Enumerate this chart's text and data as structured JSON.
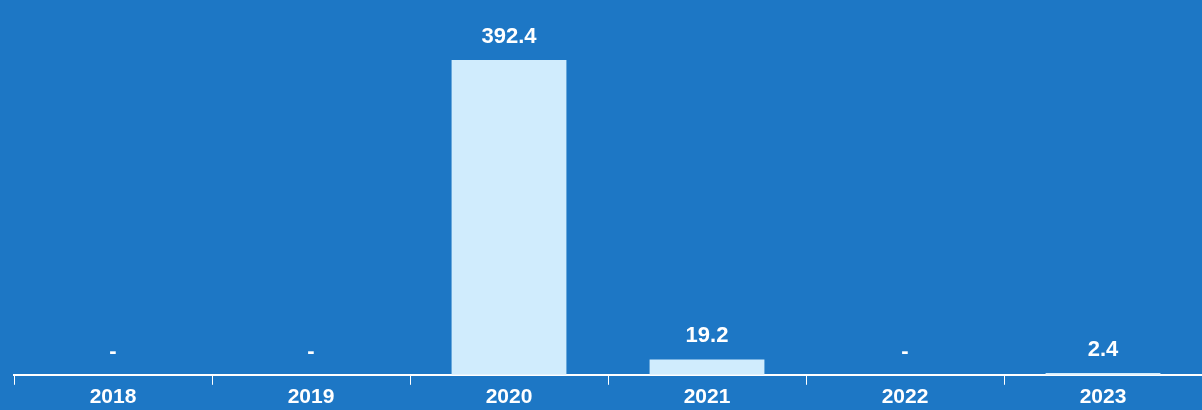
{
  "chart_data": {
    "type": "bar",
    "categories": [
      "2018",
      "2019",
      "2020",
      "2021",
      "2022",
      "2023"
    ],
    "values": [
      null,
      null,
      392.4,
      19.2,
      null,
      2.4
    ],
    "value_labels": [
      "-",
      "-",
      "392.4",
      "19.2",
      "-",
      "2.4"
    ],
    "color": "#d0ecfd",
    "grid": false,
    "legend": false
  }
}
